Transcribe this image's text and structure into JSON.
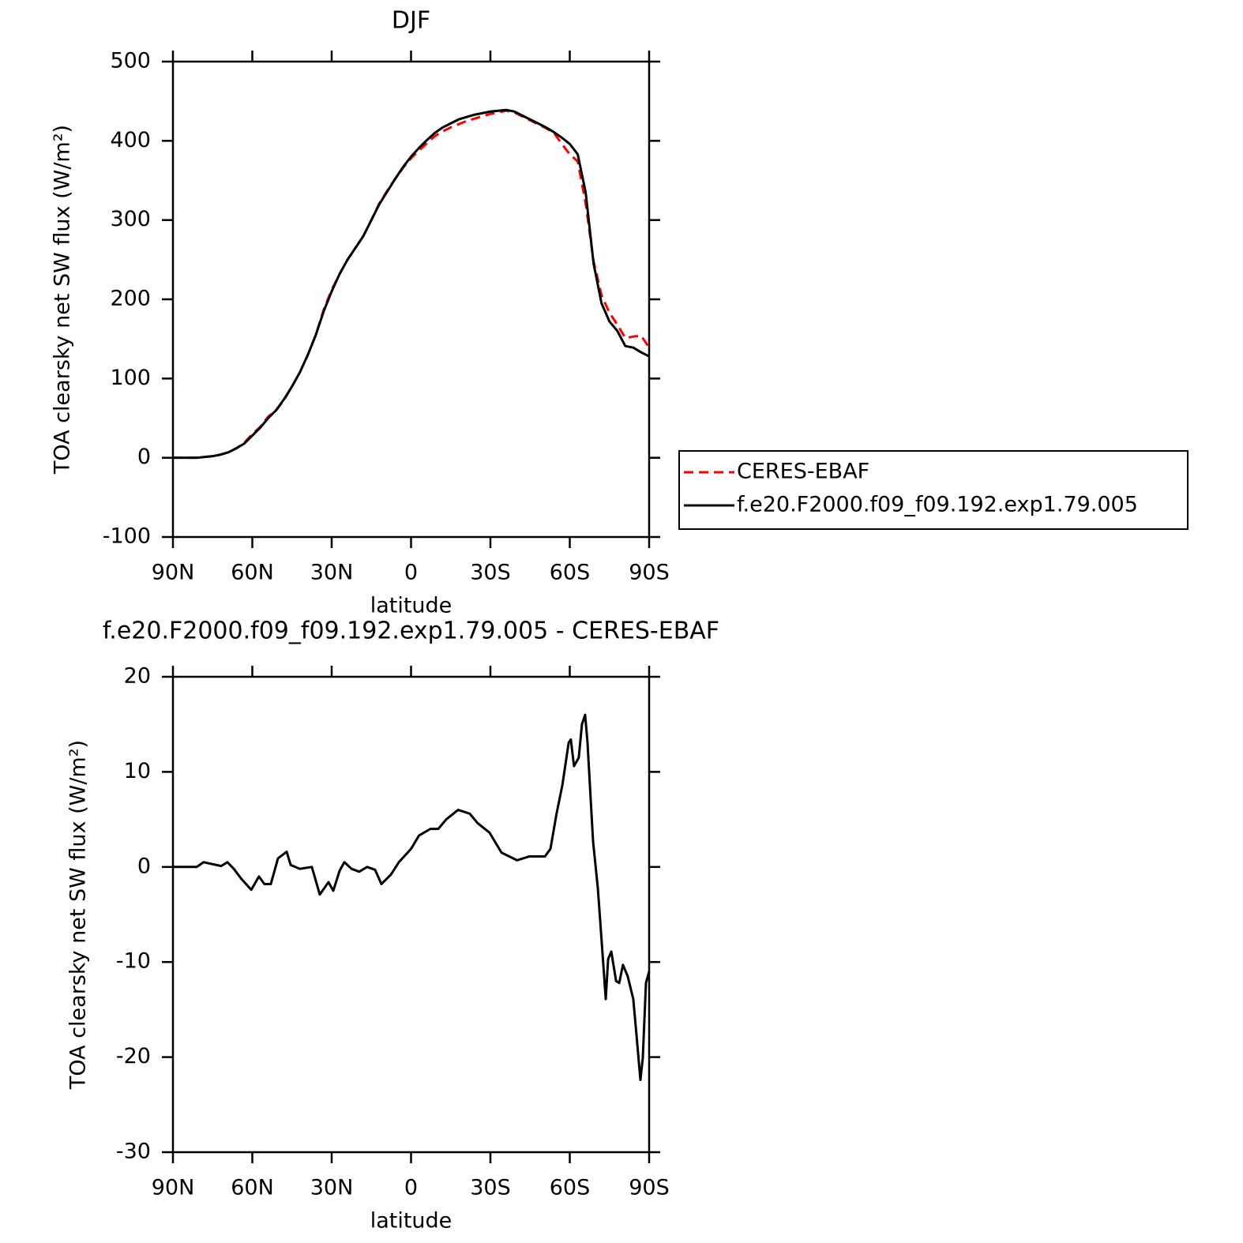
{
  "chart_data": [
    {
      "type": "line",
      "title": "DJF",
      "xlabel": "latitude",
      "ylabel": "TOA clearsky net SW flux (W/m²)",
      "x": [
        90,
        87,
        84,
        81,
        78,
        75,
        72,
        69,
        66,
        63,
        60,
        57,
        54,
        51,
        48,
        45,
        42,
        39,
        36,
        33,
        30,
        27,
        24,
        21,
        18,
        15,
        12,
        9,
        6,
        3,
        0,
        -3,
        -6,
        -9,
        -12,
        -15,
        -18,
        -21,
        -24,
        -27,
        -30,
        -33,
        -36,
        -39,
        -42,
        -45,
        -48,
        -51,
        -54,
        -57,
        -60,
        -63,
        -66,
        -69,
        -72,
        -75,
        -78,
        -81,
        -84,
        -87,
        -90
      ],
      "series": [
        {
          "name": "CERES-EBAF",
          "color": "#ff0000",
          "style": "dashed",
          "values": [
            0,
            0,
            0,
            0,
            1,
            2,
            4,
            7,
            12,
            19,
            30,
            39,
            52,
            60,
            73,
            90,
            108,
            130,
            155,
            187,
            212,
            232,
            250,
            265,
            280,
            300,
            321,
            337,
            352,
            366,
            378,
            388,
            397,
            406,
            412,
            417,
            421,
            425,
            428,
            431,
            434,
            436,
            438,
            436,
            431,
            426,
            421,
            416,
            410,
            396,
            383,
            374,
            321,
            248,
            205,
            183,
            168,
            151,
            153,
            154,
            139
          ]
        },
        {
          "name": "f.e20.F2000.f09_f09.192.exp1.79.005",
          "color": "#000000",
          "style": "solid",
          "values": [
            0,
            0,
            0,
            0,
            1,
            2,
            4,
            7,
            12,
            18,
            28,
            38,
            50,
            60,
            74,
            90,
            108,
            130,
            155,
            185,
            210,
            232,
            250,
            265,
            280,
            300,
            320,
            336,
            352,
            367,
            380,
            391,
            401,
            410,
            417,
            422,
            427,
            430,
            433,
            435,
            437,
            438,
            439,
            437,
            432,
            427,
            422,
            417,
            411,
            404,
            396,
            383,
            335,
            245,
            195,
            172,
            160,
            141,
            139,
            133,
            128
          ]
        }
      ],
      "xlim": [
        90,
        -90
      ],
      "xticks": [
        {
          "value": 90,
          "label": "90N"
        },
        {
          "value": 60,
          "label": "60N"
        },
        {
          "value": 30,
          "label": "30N"
        },
        0,
        {
          "value": -30,
          "label": "30S"
        },
        {
          "value": -60,
          "label": "60S"
        },
        {
          "value": -90,
          "label": "90S"
        }
      ],
      "ylim": [
        -100,
        500
      ],
      "yticks": [
        -100,
        0,
        100,
        200,
        300,
        400,
        500
      ],
      "legend": "right"
    },
    {
      "type": "line",
      "title": "f.e20.F2000.f09_f09.192.exp1.79.005 - CERES-EBAF",
      "xlabel": "latitude",
      "ylabel": "TOA clearsky net SW flux (W/m²)",
      "x": [
        90,
        81,
        78.4,
        71.8,
        69.4,
        67,
        64.3,
        60.4,
        57.5,
        55.4,
        53,
        50.3,
        47,
        45.5,
        42,
        37.5,
        34.5,
        31.2,
        29.4,
        27,
        25.2,
        22.5,
        19.6,
        16.6,
        13.6,
        11.2,
        7.6,
        4.6,
        0,
        -3,
        -7.3,
        -10.3,
        -13.3,
        -17.8,
        -22.2,
        -25.2,
        -29.7,
        -34.2,
        -40.1,
        -44.6,
        -50.6,
        -52.7,
        -55,
        -57.2,
        -59.6,
        -60.4,
        -61.6,
        -63.4,
        -64.6,
        -65.8,
        -66.7,
        -68.8,
        -70.6,
        -72.1,
        -73.6,
        -74.5,
        -75.7,
        -77.5,
        -78.7,
        -80.1,
        -81.9,
        -84,
        -85.2,
        -86.7,
        -87.6,
        -88.8,
        -90
      ],
      "values": [
        0,
        0,
        0.5,
        0.1,
        0.5,
        -0.2,
        -1.2,
        -2.4,
        -1,
        -1.8,
        -1.8,
        0.9,
        1.6,
        0.2,
        -0.2,
        0,
        -2.9,
        -1.6,
        -2.5,
        -0.4,
        0.5,
        -0.2,
        -0.5,
        0,
        -0.3,
        -1.8,
        -0.8,
        0.5,
        1.9,
        3.3,
        4,
        4,
        5,
        6,
        5.6,
        4.6,
        3.6,
        1.5,
        0.7,
        1.1,
        1.1,
        1.9,
        5.6,
        8.6,
        13.1,
        13.4,
        10.6,
        11.5,
        15,
        16,
        13.1,
        2.7,
        -2.2,
        -8,
        -13.9,
        -9.7,
        -8.9,
        -12,
        -12.2,
        -10.3,
        -11.5,
        -13.9,
        -17.6,
        -22.4,
        -20.1,
        -12.2,
        -11
      ],
      "color": "#000000",
      "xlim": [
        90,
        -90
      ],
      "xticks": [
        {
          "value": 90,
          "label": "90N"
        },
        {
          "value": 60,
          "label": "60N"
        },
        {
          "value": 30,
          "label": "30N"
        },
        0,
        {
          "value": -30,
          "label": "30S"
        },
        {
          "value": -60,
          "label": "60S"
        },
        {
          "value": -90,
          "label": "90S"
        }
      ],
      "ylim": [
        -30,
        20
      ],
      "yticks": [
        -30,
        -20,
        -10,
        0,
        10,
        20
      ]
    }
  ]
}
